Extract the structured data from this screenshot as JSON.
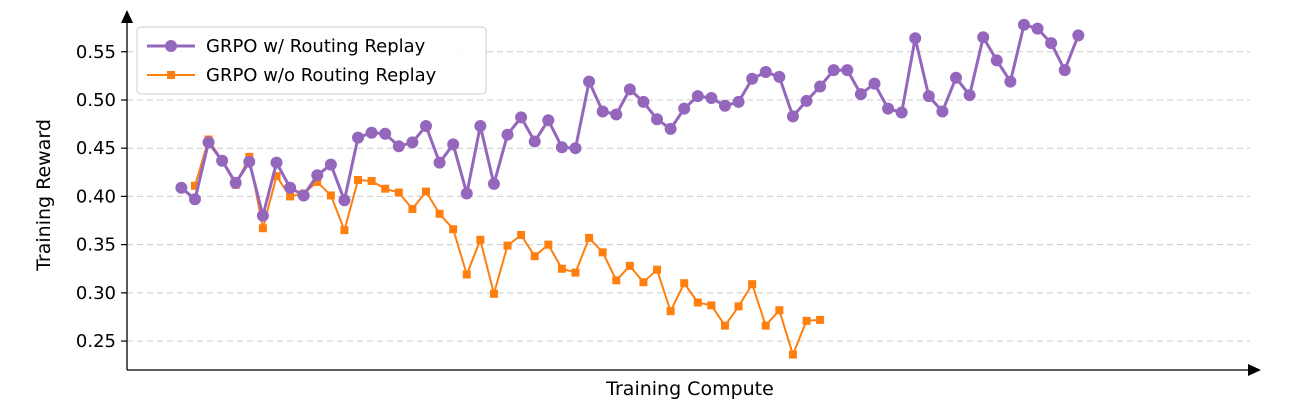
{
  "colors": {
    "series_1": "#9467bd",
    "series_2": "#ff7f0e",
    "grid": "#cccccc",
    "axis": "#000000"
  },
  "chart_data": {
    "type": "line",
    "title": "",
    "xlabel": "Training Compute",
    "ylabel": "Training Reward",
    "ylim": [
      0.22,
      0.585
    ],
    "xlim": [
      -4,
      79
    ],
    "yticks": [
      0.25,
      0.3,
      0.35,
      0.4,
      0.45,
      0.5,
      0.55
    ],
    "ytick_labels": [
      "0.25",
      "0.30",
      "0.35",
      "0.40",
      "0.45",
      "0.50",
      "0.55"
    ],
    "x_ticks_shown": false,
    "grid": "horizontal dashed",
    "legend_position": "top-left",
    "series": [
      {
        "name": "GRPO w/ Routing Replay",
        "marker": "circle",
        "color": "#9467bd",
        "x": [
          0,
          1,
          2,
          3,
          4,
          5,
          6,
          7,
          8,
          9,
          10,
          11,
          12,
          13,
          14,
          15,
          16,
          17,
          18,
          19,
          20,
          21,
          22,
          23,
          24,
          25,
          26,
          27,
          28,
          29,
          30,
          31,
          32,
          33,
          34,
          35,
          36,
          37,
          38,
          39,
          40,
          41,
          42,
          43,
          44,
          45,
          46,
          47,
          48,
          49,
          50,
          51,
          52,
          53,
          54,
          55,
          56,
          57,
          58,
          59,
          60,
          61,
          62,
          63,
          64,
          65,
          66
        ],
        "values": [
          0.409,
          0.397,
          0.456,
          0.437,
          0.414,
          0.436,
          0.38,
          0.435,
          0.409,
          0.401,
          0.422,
          0.433,
          0.396,
          0.461,
          0.466,
          0.465,
          0.452,
          0.456,
          0.473,
          0.435,
          0.454,
          0.403,
          0.473,
          0.413,
          0.464,
          0.482,
          0.457,
          0.479,
          0.451,
          0.45,
          0.519,
          0.488,
          0.485,
          0.511,
          0.498,
          0.48,
          0.47,
          0.491,
          0.504,
          0.502,
          0.494,
          0.498,
          0.522,
          0.529,
          0.524,
          0.483,
          0.499,
          0.514,
          0.531,
          0.531,
          0.506,
          0.517,
          0.491,
          0.487,
          0.564,
          0.504,
          0.488,
          0.523,
          0.505,
          0.565,
          0.541,
          0.519,
          0.578,
          0.574,
          0.559,
          0.531,
          0.567
        ]
      },
      {
        "name": "GRPO w/o Routing Replay",
        "marker": "square",
        "color": "#ff7f0e",
        "x": [
          1,
          2,
          3,
          4,
          5,
          6,
          7,
          8,
          9,
          10,
          11,
          12,
          13,
          14,
          15,
          16,
          17,
          18,
          19,
          20,
          21,
          22,
          23,
          24,
          25,
          26,
          27,
          28,
          29,
          30,
          31,
          32,
          33,
          34,
          35,
          36,
          37,
          38,
          39,
          40,
          41,
          42,
          43,
          44,
          45,
          46,
          47
        ],
        "values": [
          0.411,
          0.459,
          0.437,
          0.412,
          0.441,
          0.367,
          0.421,
          0.4,
          0.403,
          0.415,
          0.401,
          0.365,
          0.417,
          0.416,
          0.408,
          0.404,
          0.387,
          0.405,
          0.382,
          0.366,
          0.319,
          0.355,
          0.299,
          0.349,
          0.36,
          0.338,
          0.35,
          0.325,
          0.321,
          0.357,
          0.342,
          0.313,
          0.328,
          0.311,
          0.324,
          0.281,
          0.31,
          0.29,
          0.287,
          0.266,
          0.286,
          0.309,
          0.266,
          0.282,
          0.236,
          0.271,
          0.272
        ]
      }
    ]
  }
}
